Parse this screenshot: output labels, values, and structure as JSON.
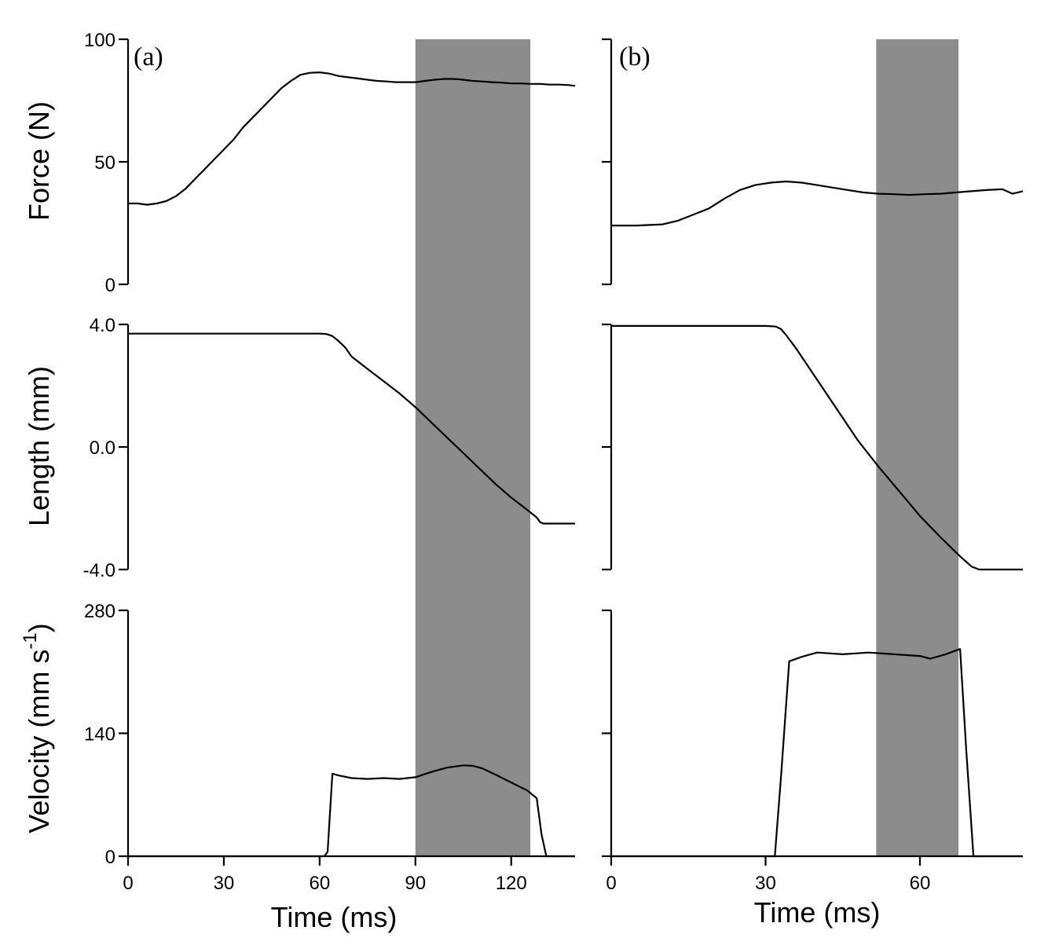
{
  "colors": {
    "shade": "#8c8c8c",
    "line": "#000000",
    "background": "#ffffff"
  },
  "labels": {
    "panel_a": "(a)",
    "panel_b": "(b)",
    "force_ylabel": "Force (N)",
    "length_ylabel": "Length (mm)",
    "velocity_ylabel_main": "Velocity (mm s",
    "velocity_ylabel_sup": "-1",
    "velocity_ylabel_close": ")",
    "xlabel": "Time (ms)"
  },
  "chart_data": [
    {
      "type": "line",
      "panel": "(a)",
      "title": "",
      "xlabel": "Time (ms)",
      "x_ticks": [
        "0",
        "30",
        "60",
        "90",
        "120"
      ],
      "xlim": [
        0,
        140
      ],
      "shaded_interval": [
        90,
        126
      ],
      "subplots": [
        {
          "ylabel": "Force (N)",
          "ylim": [
            0,
            100
          ],
          "y_ticks": [
            "0",
            "50",
            "100"
          ],
          "series": [
            {
              "x": [
                0,
                3,
                6,
                9,
                12,
                15,
                18,
                21,
                24,
                27,
                30,
                33,
                36,
                39,
                42,
                45,
                48,
                51,
                54,
                57,
                60,
                63,
                66,
                69,
                72,
                75,
                78,
                81,
                84,
                87,
                90,
                93,
                96,
                99,
                102,
                105,
                108,
                111,
                114,
                117,
                120,
                123,
                126,
                129,
                132,
                135,
                138,
                140
              ],
              "y": [
                33,
                33,
                32.5,
                33,
                34,
                36,
                39,
                43,
                47,
                51,
                55,
                59,
                64,
                68,
                72,
                76,
                80,
                83,
                85.5,
                86.3,
                86.5,
                86,
                85,
                84.5,
                84,
                83.5,
                83,
                82.8,
                82.5,
                82.5,
                82.5,
                83,
                83.5,
                83.8,
                83.8,
                83.5,
                83,
                82.8,
                82.5,
                82.3,
                82,
                82,
                81.8,
                81.8,
                81.5,
                81.5,
                81.3,
                81
              ]
            }
          ]
        },
        {
          "ylabel": "Length (mm)",
          "ylim": [
            -4.0,
            4.0
          ],
          "y_ticks": [
            "-4.0",
            "0.0",
            "4.0"
          ],
          "series": [
            {
              "x": [
                0,
                20,
                40,
                60,
                62,
                64,
                66,
                68,
                70,
                75,
                80,
                85,
                90,
                95,
                100,
                105,
                110,
                115,
                120,
                125,
                128,
                129,
                130,
                135,
                140
              ],
              "y": [
                3.7,
                3.7,
                3.7,
                3.7,
                3.69,
                3.62,
                3.45,
                3.25,
                2.95,
                2.55,
                2.15,
                1.75,
                1.3,
                0.8,
                0.3,
                -0.2,
                -0.7,
                -1.2,
                -1.65,
                -2.05,
                -2.3,
                -2.45,
                -2.5,
                -2.5,
                -2.5
              ]
            }
          ]
        },
        {
          "ylabel": "Velocity (mm s-1)",
          "ylim": [
            0,
            280
          ],
          "y_ticks": [
            "0",
            "140",
            "280"
          ],
          "series": [
            {
              "x": [
                0,
                30,
                60,
                61.5,
                62.5,
                64,
                66,
                70,
                75,
                80,
                85,
                90,
                95,
                100,
                105,
                108,
                111,
                115,
                120,
                125,
                127,
                128,
                129.5,
                131,
                140
              ],
              "y": [
                0,
                0,
                0,
                0,
                5,
                94,
                92,
                89,
                88,
                89,
                88,
                90,
                96,
                101,
                103.5,
                103,
                100,
                93,
                84,
                75,
                69,
                66,
                25,
                0,
                0
              ]
            }
          ]
        }
      ]
    },
    {
      "type": "line",
      "panel": "(b)",
      "title": "",
      "xlabel": "Time (ms)",
      "x_ticks": [
        "0",
        "30",
        "60"
      ],
      "xlim": [
        0,
        80
      ],
      "shaded_interval": [
        51.5,
        67.5
      ],
      "subplots": [
        {
          "ylabel": "",
          "ylim": [
            0,
            100
          ],
          "y_ticks": [
            "",
            "",
            ""
          ],
          "series": [
            {
              "x": [
                0,
                5,
                10,
                13,
                16,
                19,
                22,
                25,
                28,
                31,
                34,
                37,
                40,
                43,
                46,
                49,
                52,
                55,
                58,
                61,
                64,
                67,
                70,
                73,
                76,
                78,
                80
              ],
              "y": [
                24,
                24,
                24.5,
                26,
                28.5,
                31,
                35,
                38.5,
                40.5,
                41.5,
                42,
                41.5,
                40.5,
                39.5,
                38.5,
                37.5,
                37,
                36.8,
                36.5,
                36.8,
                37,
                37.5,
                38,
                38.5,
                38.8,
                37,
                38
              ]
            }
          ]
        },
        {
          "ylabel": "",
          "ylim": [
            -4.0,
            4.0
          ],
          "y_ticks": [
            "",
            "",
            ""
          ],
          "series": [
            {
              "x": [
                0,
                10,
                20,
                30,
                32,
                33,
                34,
                36,
                38,
                40,
                44,
                48,
                52,
                56,
                60,
                64,
                68,
                70,
                71.5,
                73,
                80
              ],
              "y": [
                3.95,
                3.95,
                3.95,
                3.95,
                3.93,
                3.85,
                3.65,
                3.2,
                2.7,
                2.2,
                1.2,
                0.2,
                -0.65,
                -1.45,
                -2.25,
                -2.95,
                -3.6,
                -3.9,
                -4.0,
                -4.0,
                -4.0
              ]
            }
          ]
        },
        {
          "ylabel": "",
          "ylim": [
            0,
            280
          ],
          "y_ticks": [
            "",
            "",
            ""
          ],
          "series": [
            {
              "x": [
                0,
                20,
                31.8,
                33,
                34.6,
                37,
                40,
                45,
                50,
                55,
                60,
                62,
                65,
                67.8,
                69,
                70.4,
                80
              ],
              "y": [
                0,
                0,
                0,
                90,
                222,
                227,
                232,
                230,
                232,
                230,
                228,
                225,
                230,
                236,
                120,
                0,
                0
              ]
            }
          ]
        }
      ]
    }
  ]
}
